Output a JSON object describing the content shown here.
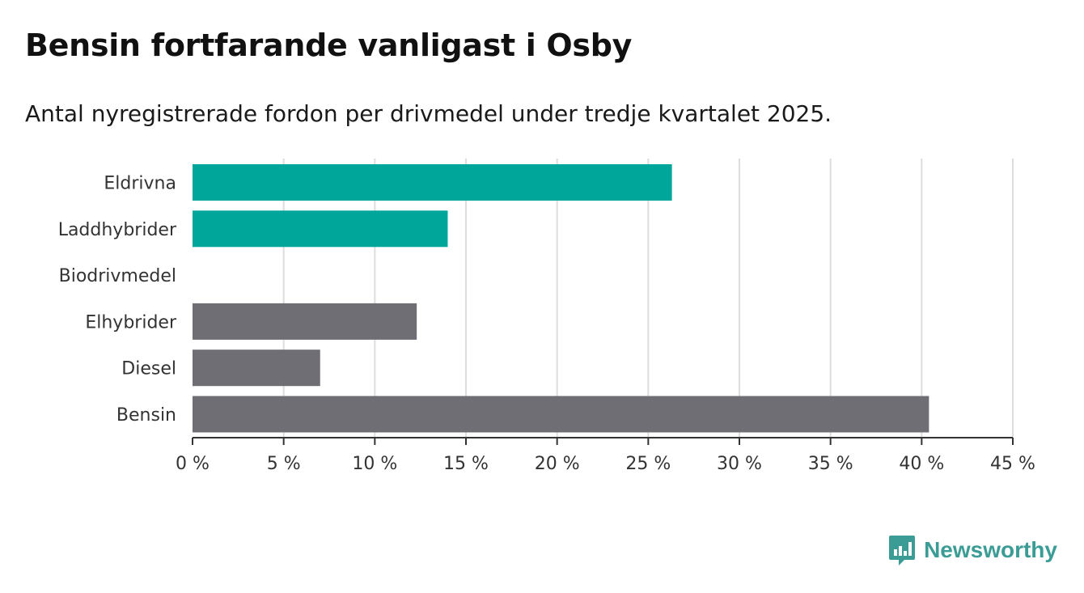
{
  "header": {
    "title": "Bensin fortfarande vanligast i Osby",
    "subtitle": "Antal nyregistrerade fordon per drivmedel under tredje kvartalet 2025."
  },
  "brand": {
    "name": "Newsworthy",
    "color": "#3b9c96"
  },
  "colors": {
    "highlight": "#00a69a",
    "default": "#6f6e75",
    "gridline": "#dddddd",
    "axis": "#333333"
  },
  "chart_data": {
    "type": "bar",
    "orientation": "horizontal",
    "categories": [
      "Eldrivna",
      "Laddhybrider",
      "Biodrivmedel",
      "Elhybrider",
      "Diesel",
      "Bensin"
    ],
    "values": [
      26.3,
      14.0,
      0,
      12.3,
      7.0,
      40.4
    ],
    "highlight": [
      true,
      true,
      false,
      false,
      false,
      false
    ],
    "xlim": [
      0,
      45
    ],
    "xticks": [
      0,
      5,
      10,
      15,
      20,
      25,
      30,
      35,
      40,
      45
    ],
    "tick_labels": [
      "0 %",
      "5 %",
      "10 %",
      "15 %",
      "20 %",
      "25 %",
      "30 %",
      "35 %",
      "40 %",
      "45 %"
    ],
    "xlabel": "",
    "ylabel": "",
    "grid": true,
    "unit": "%"
  }
}
